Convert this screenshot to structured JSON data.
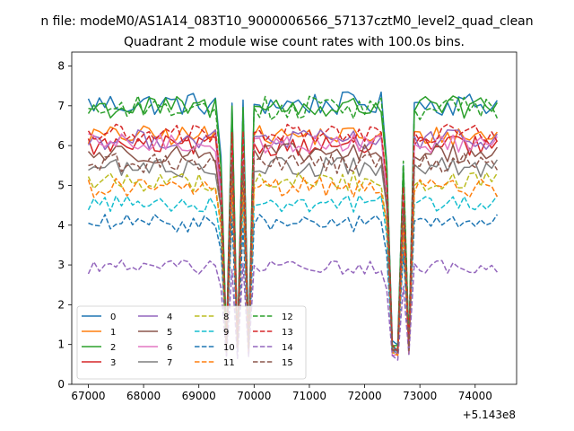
{
  "chart_data": {
    "type": "line",
    "suptitle": "n file: modeM0/AS1A14_083T10_9000006566_57137cztM0_level2_quad_clean",
    "title": "Quadrant 2 module wise count rates with 100.0s bins.",
    "xlabel": "",
    "ylabel": "",
    "x_offset_label": "+5.143e8",
    "xlim": [
      66700,
      74750
    ],
    "ylim": [
      0,
      8.35
    ],
    "x_ticks": [
      67000,
      68000,
      69000,
      70000,
      71000,
      72000,
      73000,
      74000
    ],
    "x_tick_labels": [
      "67000",
      "68000",
      "69000",
      "70000",
      "71000",
      "72000",
      "73000",
      "74000"
    ],
    "y_ticks": [
      0,
      1,
      2,
      3,
      4,
      5,
      6,
      7,
      8
    ],
    "y_tick_labels": [
      "0",
      "1",
      "2",
      "3",
      "4",
      "5",
      "6",
      "7",
      "8"
    ],
    "x_start": 67000,
    "x_step": 100,
    "n_points": 75,
    "dips": [
      {
        "from": 69350,
        "to": 69470,
        "min": 69500,
        "end": 69600
      },
      {
        "from": 69650,
        "to": 69700,
        "min": 69700,
        "end": 69800
      },
      {
        "from": 69800,
        "to": 69850,
        "min": 69900,
        "end": 70000
      },
      {
        "from": 72350,
        "to": 72400,
        "min": 72500,
        "end": 72550
      },
      {
        "from": 72550,
        "to": 72600,
        "min": 72600,
        "end": 72650
      },
      {
        "from": 72650,
        "to": 72700,
        "min": 72800,
        "end": 72900
      }
    ],
    "legend_location": "lower-left",
    "series": [
      {
        "name": "0",
        "color": "#1f77b4",
        "dash": "solid",
        "base": 7.05,
        "noise": 0.3,
        "dip_min": 0.9
      },
      {
        "name": "1",
        "color": "#ff7f0e",
        "dash": "solid",
        "base": 6.25,
        "noise": 0.25,
        "dip_min": 0.8
      },
      {
        "name": "2",
        "color": "#2ca02c",
        "dash": "solid",
        "base": 6.95,
        "noise": 0.3,
        "dip_min": 0.9
      },
      {
        "name": "3",
        "color": "#d62728",
        "dash": "solid",
        "base": 6.0,
        "noise": 0.25,
        "dip_min": 0.8
      },
      {
        "name": "4",
        "color": "#9467bd",
        "dash": "solid",
        "base": 6.15,
        "noise": 0.25,
        "dip_min": 0.7
      },
      {
        "name": "5",
        "color": "#8c564b",
        "dash": "solid",
        "base": 5.8,
        "noise": 0.25,
        "dip_min": 0.8
      },
      {
        "name": "6",
        "color": "#e377c2",
        "dash": "solid",
        "base": 6.05,
        "noise": 0.25,
        "dip_min": 0.7
      },
      {
        "name": "7",
        "color": "#7f7f7f",
        "dash": "solid",
        "base": 5.45,
        "noise": 0.25,
        "dip_min": 0.8
      },
      {
        "name": "8",
        "color": "#bcbd22",
        "dash": "dashed",
        "base": 5.1,
        "noise": 0.25,
        "dip_min": 0.7
      },
      {
        "name": "9",
        "color": "#17becf",
        "dash": "dashed",
        "base": 4.55,
        "noise": 0.22,
        "dip_min": 0.8
      },
      {
        "name": "10",
        "color": "#1f77b4",
        "dash": "dashed",
        "base": 4.05,
        "noise": 0.22,
        "dip_min": 0.8
      },
      {
        "name": "11",
        "color": "#ff7f0e",
        "dash": "dashed",
        "base": 4.95,
        "noise": 0.25,
        "dip_min": 0.7
      },
      {
        "name": "12",
        "color": "#2ca02c",
        "dash": "dashed",
        "base": 6.95,
        "noise": 0.3,
        "dip_min": 0.9
      },
      {
        "name": "13",
        "color": "#d62728",
        "dash": "dashed",
        "base": 6.3,
        "noise": 0.25,
        "dip_min": 0.8
      },
      {
        "name": "14",
        "color": "#9467bd",
        "dash": "dashed",
        "base": 2.95,
        "noise": 0.18,
        "dip_min": 0.6
      },
      {
        "name": "15",
        "color": "#8c564b",
        "dash": "dashed",
        "base": 5.55,
        "noise": 0.25,
        "dip_min": 0.8
      }
    ]
  }
}
